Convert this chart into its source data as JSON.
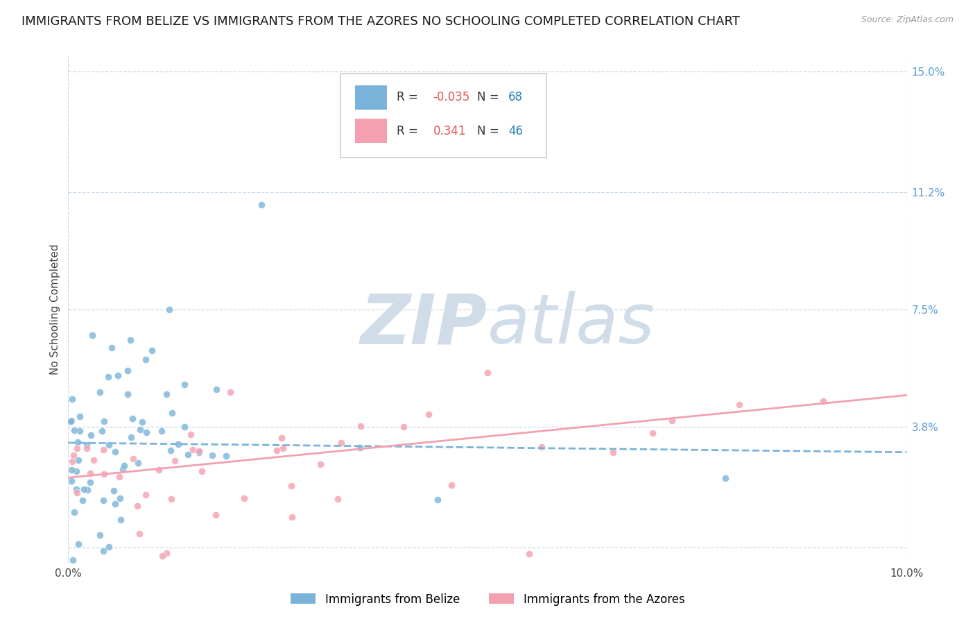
{
  "title": "IMMIGRANTS FROM BELIZE VS IMMIGRANTS FROM THE AZORES NO SCHOOLING COMPLETED CORRELATION CHART",
  "source": "Source: ZipAtlas.com",
  "ylabel": "No Schooling Completed",
  "xlim": [
    0.0,
    0.1
  ],
  "ylim": [
    -0.005,
    0.155
  ],
  "plot_ylim": [
    0.0,
    0.15
  ],
  "yticks": [
    0.0,
    0.038,
    0.075,
    0.112,
    0.15
  ],
  "ytick_labels": [
    "",
    "3.8%",
    "7.5%",
    "11.2%",
    "15.0%"
  ],
  "xticks": [
    0.0,
    0.02,
    0.04,
    0.06,
    0.08,
    0.1
  ],
  "xtick_labels": [
    "0.0%",
    "",
    "",
    "",
    "",
    "10.0%"
  ],
  "belize_color": "#7ab3d9",
  "azores_color": "#f4a0b0",
  "belize_R": -0.035,
  "belize_N": 68,
  "azores_R": 0.341,
  "azores_N": 46,
  "watermark_zip": "ZIP",
  "watermark_atlas": "atlas",
  "watermark_color": "#d0dde8",
  "background_color": "#ffffff",
  "grid_color": "#c8d8e8",
  "title_fontsize": 13,
  "axis_label_fontsize": 11,
  "tick_fontsize": 11,
  "legend_fontsize": 12,
  "source_text": "Source: ZipAtlas.com"
}
